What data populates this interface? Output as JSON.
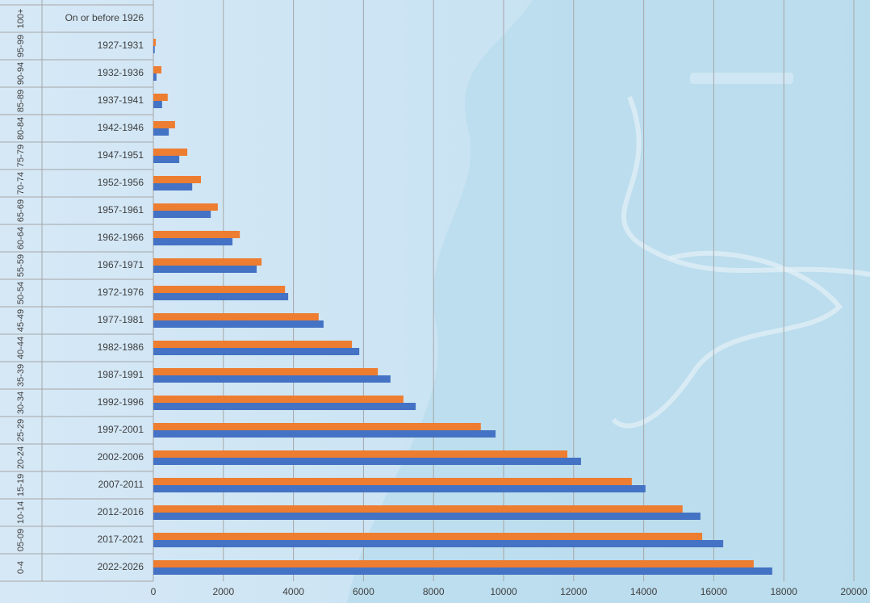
{
  "chart_data": {
    "type": "bar",
    "orientation": "horizontal",
    "age_groups": [
      "100+",
      "95-99",
      "90-94",
      "85-89",
      "80-84",
      "75-79",
      "70-74",
      "65-69",
      "60-64",
      "55-59",
      "50-54",
      "45-49",
      "40-44",
      "35-39",
      "30-34",
      "25-29",
      "20-24",
      "15-19",
      "10-14",
      "05-09",
      "0-4"
    ],
    "categories": [
      "On or before 1926",
      "1927-1931",
      "1932-1936",
      "1937-1941",
      "1942-1946",
      "1947-1951",
      "1952-1956",
      "1957-1961",
      "1962-1966",
      "1967-1971",
      "1972-1976",
      "1977-1981",
      "1982-1986",
      "1987-1991",
      "1992-1996",
      "1997-2001",
      "2002-2006",
      "2007-2011",
      "2012-2016",
      "2017-2021",
      "2022-2026"
    ],
    "series": [
      {
        "color": "#ed7d31",
        "values": [
          0,
          70,
          230,
          410,
          620,
          970,
          1360,
          1840,
          2470,
          3090,
          3760,
          4720,
          5670,
          6410,
          7140,
          9350,
          11820,
          13660,
          15110,
          15670,
          17140
        ]
      },
      {
        "color": "#4472c4",
        "values": [
          0,
          40,
          90,
          250,
          440,
          740,
          1110,
          1640,
          2260,
          2950,
          3850,
          4860,
          5880,
          6770,
          7490,
          9770,
          12210,
          14050,
          15620,
          16270,
          17670
        ]
      }
    ],
    "xlim": [
      0,
      20000
    ],
    "xticks": [
      0,
      2000,
      4000,
      6000,
      8000,
      10000,
      12000,
      14000,
      16000,
      18000,
      20000
    ],
    "grid": true
  }
}
